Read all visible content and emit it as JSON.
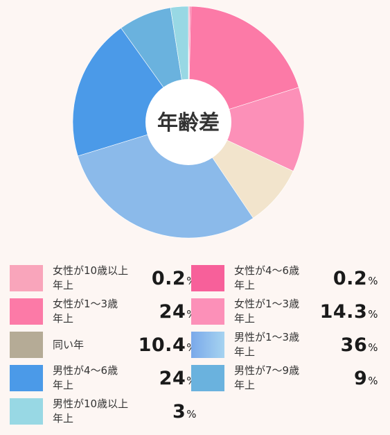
{
  "chart_data": {
    "type": "pie",
    "center_label": "年齢差",
    "slices": [
      {
        "label": "女性が10歳以上\n年上",
        "value": 0.2,
        "value_text": "0.2",
        "unit": "%",
        "color": "#f9a5bb"
      },
      {
        "label": "女性が4〜6歳\n年上",
        "value": 0.2,
        "value_text": "0.2",
        "unit": "%",
        "color": "#f7609a"
      },
      {
        "label": "女性が1〜3歳\n年上",
        "value": 24,
        "value_text": "24",
        "unit": "%",
        "color": "#fc7aa7"
      },
      {
        "label": "女性が1〜3歳\n年上",
        "value": 14.3,
        "value_text": "14.3",
        "unit": "%",
        "color": "#fc90b8"
      },
      {
        "label": "同い年",
        "value": 10.4,
        "value_text": "10.4",
        "unit": "%",
        "color": "#f2e4cc"
      },
      {
        "label": "男性が1〜3歳\n年上",
        "value": 36,
        "value_text": "36",
        "unit": "%",
        "color": "#8bbaea"
      },
      {
        "label": "男性が4〜6歳\n年上",
        "value": 24,
        "value_text": "24",
        "unit": "%",
        "color": "#4b9ae8"
      },
      {
        "label": "男性が7〜9歳\n年上",
        "value": 9,
        "value_text": "9",
        "unit": "%",
        "color": "#6ab2de"
      },
      {
        "label": "男性が10歳以上\n年上",
        "value": 3,
        "value_text": "3",
        "unit": "%",
        "color": "#98d8e4"
      }
    ],
    "legend_colors": [
      "#f9a5bb",
      "#f7609a",
      "#fc7aa7",
      "#fc90b8",
      "#b5ab96",
      "#8bbaea",
      "#4b9ae8",
      "#6ab2de",
      "#98d8e4"
    ]
  }
}
